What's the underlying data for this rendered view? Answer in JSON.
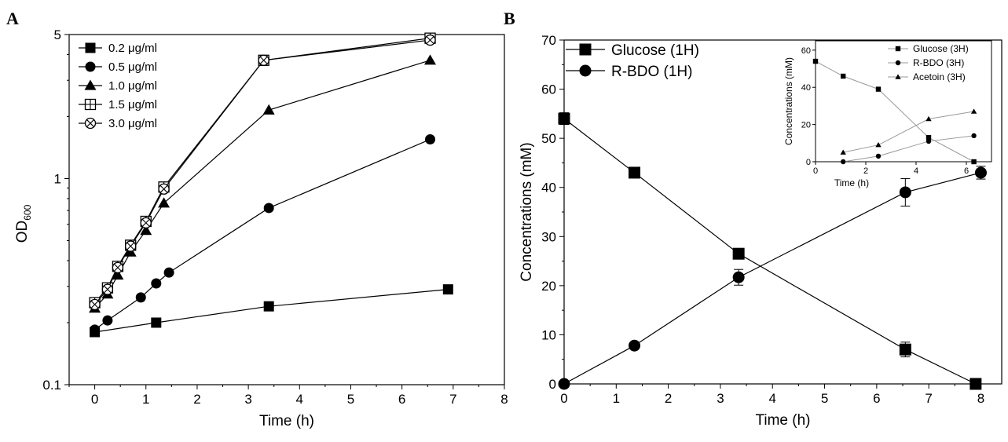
{
  "figure": {
    "panel_a_label": "A",
    "panel_b_label": "B"
  },
  "chart_data": [
    {
      "id": "A",
      "type": "line",
      "xlabel": "Time (h)",
      "ylabel_main": "OD",
      "ylabel_sub": "600",
      "xlim": [
        -0.5,
        8
      ],
      "ylim": [
        0.1,
        5
      ],
      "yscale": "log",
      "xticks": [
        "0",
        "1",
        "2",
        "3",
        "4",
        "5",
        "6",
        "7",
        "8"
      ],
      "yticks": [
        "0.1",
        "1",
        "5"
      ],
      "legend_position": "top-left",
      "series": [
        {
          "name": "0.2 μg/ml",
          "marker": "square",
          "x": [
            0,
            1.2,
            3.4,
            6.9
          ],
          "y": [
            0.18,
            0.2,
            0.24,
            0.29
          ]
        },
        {
          "name": "0.5 μg/ml",
          "marker": "circle",
          "x": [
            0,
            0.25,
            0.9,
            1.2,
            1.45,
            3.4,
            6.55
          ],
          "y": [
            0.185,
            0.205,
            0.265,
            0.31,
            0.35,
            0.72,
            1.55
          ]
        },
        {
          "name": "1.0 μg/ml",
          "marker": "triangle",
          "x": [
            0,
            0.25,
            0.45,
            0.7,
            1.0,
            1.35,
            3.4,
            6.55
          ],
          "y": [
            0.235,
            0.275,
            0.34,
            0.44,
            0.56,
            0.76,
            2.15,
            3.75
          ]
        },
        {
          "name": "1.5 μg/ml",
          "marker": "square-plus",
          "x": [
            0,
            0.25,
            0.45,
            0.7,
            1.0,
            1.35,
            3.3,
            6.55
          ],
          "y": [
            0.25,
            0.295,
            0.375,
            0.475,
            0.62,
            0.91,
            3.75,
            4.8
          ]
        },
        {
          "name": "3.0 μg/ml",
          "marker": "circle-x",
          "x": [
            0,
            0.25,
            0.45,
            0.7,
            1.0,
            1.35,
            3.3,
            6.55
          ],
          "y": [
            0.245,
            0.29,
            0.37,
            0.47,
            0.61,
            0.89,
            3.75,
            4.7
          ]
        }
      ]
    },
    {
      "id": "B",
      "type": "line",
      "xlabel": "Time (h)",
      "ylabel": "Concentrations (mM)",
      "xlim": [
        0,
        8.4
      ],
      "ylim": [
        0,
        70
      ],
      "xticks": [
        "0",
        "1",
        "2",
        "3",
        "4",
        "5",
        "6",
        "7",
        "8"
      ],
      "yticks": [
        "0",
        "10",
        "20",
        "30",
        "40",
        "50",
        "60",
        "70"
      ],
      "legend_position": "top-left",
      "series": [
        {
          "name": "Glucose (1H)",
          "marker": "square",
          "x": [
            0,
            1.35,
            3.35,
            6.55,
            7.9
          ],
          "y": [
            54,
            43,
            26.5,
            7,
            0
          ],
          "err": [
            1.2,
            0,
            0,
            1.5,
            0
          ]
        },
        {
          "name": "R-BDO (1H)",
          "marker": "circle",
          "x": [
            0,
            1.35,
            3.35,
            6.55,
            8.0
          ],
          "y": [
            0,
            7.8,
            21.7,
            39,
            43
          ],
          "err": [
            0,
            0,
            1.6,
            2.8,
            1.3
          ]
        }
      ]
    },
    {
      "id": "B-inset",
      "type": "line",
      "xlabel": "Time (h)",
      "ylabel": "Concentrations (mM)",
      "xlim": [
        0,
        7
      ],
      "ylim": [
        0,
        65
      ],
      "xticks": [
        "0",
        "2",
        "4",
        "6"
      ],
      "yticks": [
        "0",
        "20",
        "40",
        "60"
      ],
      "legend_position": "top-right",
      "series": [
        {
          "name": "Glucose (3H)",
          "marker": "square",
          "x": [
            0,
            1.1,
            2.5,
            4.5,
            6.3
          ],
          "y": [
            54,
            46,
            39,
            13,
            0
          ]
        },
        {
          "name": "R-BDO (3H)",
          "marker": "circle",
          "x": [
            1.1,
            2.5,
            4.5,
            6.3
          ],
          "y": [
            0,
            3,
            11,
            14
          ]
        },
        {
          "name": "Acetoin (3H)",
          "marker": "triangle",
          "x": [
            1.1,
            2.5,
            4.5,
            6.3
          ],
          "y": [
            5,
            9,
            23,
            27
          ]
        }
      ]
    }
  ],
  "colors": {
    "ink": "#000000",
    "inset_line": "#9a9a9a",
    "background": "#ffffff"
  }
}
